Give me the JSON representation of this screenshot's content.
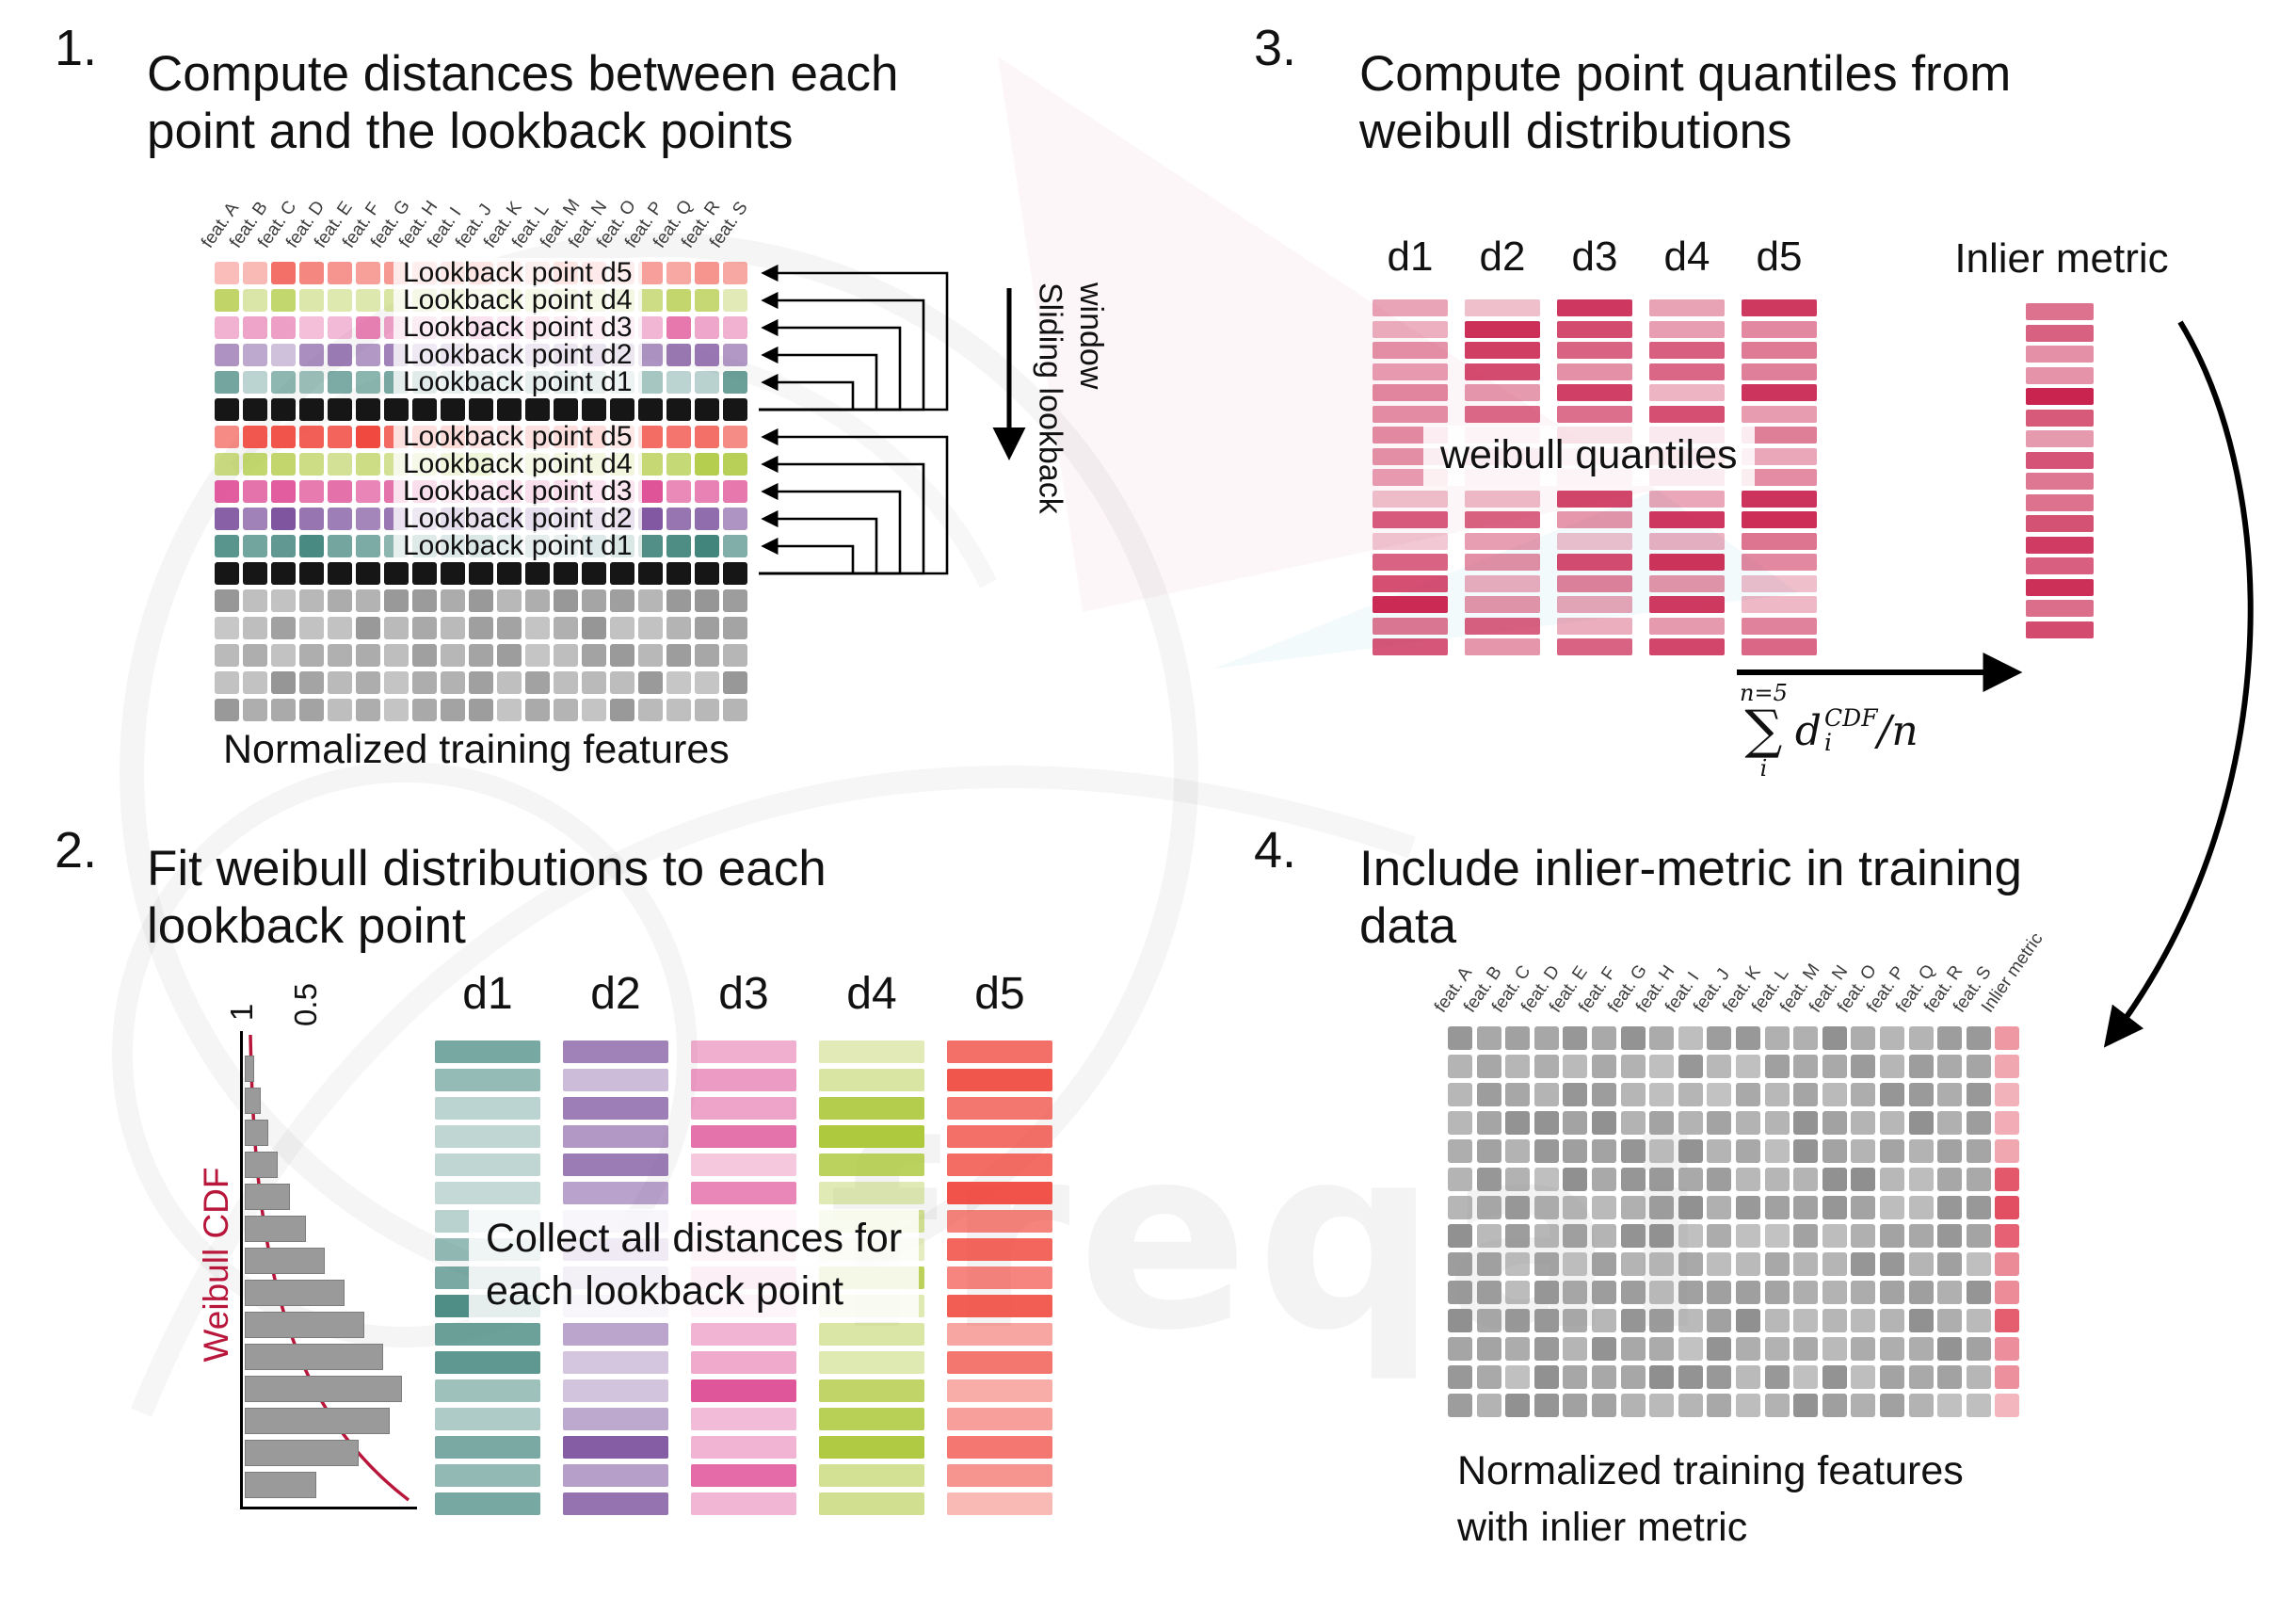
{
  "palette": {
    "d1": "#3E837A",
    "d2": "#7D539E",
    "d3": "#DE4D95",
    "d4": "#AFC93F",
    "d5": "#F0493F",
    "black": "#161616",
    "gray": "#8F8F8F",
    "quantile": "#C9234F",
    "inlier": "#E04358",
    "cdf_curve": "#B8173B",
    "arrow": "#000000"
  },
  "watermark": {
    "text": "freqai"
  },
  "step1": {
    "number": "1.",
    "title_lines": [
      "Compute distances between each",
      "point and the lookback points"
    ],
    "feature_labels": [
      "feat. A",
      "feat. B",
      "feat. C",
      "feat. D",
      "feat. E",
      "feat. F",
      "feat. G",
      "feat. H",
      "feat. I",
      "feat. J",
      "feat. K",
      "feat. L",
      "feat. M",
      "feat. N",
      "feat. O",
      "feat. P",
      "feat. Q",
      "feat. R",
      "feat. S"
    ],
    "rows": [
      {
        "label": "Lookback point d5",
        "color_key": "d5",
        "alpha": [
          0.35,
          0.8
        ]
      },
      {
        "label": "Lookback point d4",
        "color_key": "d4",
        "alpha": [
          0.35,
          0.8
        ]
      },
      {
        "label": "Lookback point d3",
        "color_key": "d3",
        "alpha": [
          0.35,
          0.8
        ]
      },
      {
        "label": "Lookback point d2",
        "color_key": "d2",
        "alpha": [
          0.35,
          0.8
        ]
      },
      {
        "label": "Lookback point d1",
        "color_key": "d1",
        "alpha": [
          0.35,
          0.8
        ]
      },
      {
        "color_key": "black",
        "alpha": [
          1,
          1
        ]
      },
      {
        "label": "Lookback point d5",
        "color_key": "d5",
        "alpha": [
          0.55,
          1
        ]
      },
      {
        "label": "Lookback point d4",
        "color_key": "d4",
        "alpha": [
          0.55,
          1
        ]
      },
      {
        "label": "Lookback point d3",
        "color_key": "d3",
        "alpha": [
          0.55,
          1
        ]
      },
      {
        "label": "Lookback point d2",
        "color_key": "d2",
        "alpha": [
          0.55,
          1
        ]
      },
      {
        "label": "Lookback point d1",
        "color_key": "d1",
        "alpha": [
          0.55,
          1
        ]
      },
      {
        "color_key": "black",
        "alpha": [
          1,
          1
        ]
      },
      {
        "color_key": "gray",
        "alpha": [
          0.5,
          0.95
        ]
      },
      {
        "color_key": "gray",
        "alpha": [
          0.5,
          0.95
        ]
      },
      {
        "color_key": "gray",
        "alpha": [
          0.5,
          0.95
        ]
      },
      {
        "color_key": "gray",
        "alpha": [
          0.5,
          0.95
        ]
      },
      {
        "color_key": "gray",
        "alpha": [
          0.5,
          0.95
        ]
      }
    ],
    "sliding_lines": [
      "Sliding lookback",
      "window"
    ],
    "caption": "Normalized training features"
  },
  "step2": {
    "number": "2.",
    "title_lines": [
      "Fit weibull distributions to each",
      "lookback point"
    ],
    "plot": {
      "cdf_label": "Weibull CDF",
      "tick_labels": [
        "1",
        "0.5"
      ],
      "bar_values": [
        0.05,
        0.09,
        0.14,
        0.2,
        0.28,
        0.38,
        0.5,
        0.63,
        0.76,
        0.88,
        1.0,
        0.92,
        0.72,
        0.45
      ]
    },
    "columns": [
      {
        "label": "d1",
        "color_key": "d1"
      },
      {
        "label": "d2",
        "color_key": "d2"
      },
      {
        "label": "d3",
        "color_key": "d3"
      },
      {
        "label": "d4",
        "color_key": "d4"
      },
      {
        "label": "d5",
        "color_key": "d5"
      }
    ],
    "overlay_lines": [
      "Collect all distances for",
      "each lookback point"
    ]
  },
  "step3": {
    "number": "3.",
    "title_lines": [
      "Compute point quantiles from",
      "weibull distributions"
    ],
    "columns": [
      "d1",
      "d2",
      "d3",
      "d4",
      "d5"
    ],
    "inlier_label": "Inlier metric",
    "overlay": "weibull quantiles",
    "formula": {
      "sum_sup": "n=5",
      "sum_sym": "∑",
      "sum_sub": "i",
      "var": "d",
      "var_sup": "CDF",
      "var_sub": "i",
      "tail": "/n"
    }
  },
  "step4": {
    "number": "4.",
    "title_lines": [
      "Include inlier-metric in training",
      "data"
    ],
    "feature_labels": [
      "feat. A",
      "feat. B",
      "feat. C",
      "feat. D",
      "feat. E",
      "feat. F",
      "feat. G",
      "feat. H",
      "feat. I",
      "feat. J",
      "feat. K",
      "feat. L",
      "feat. M",
      "feat. N",
      "feat. O",
      "feat. P",
      "feat. Q",
      "feat. R",
      "feat. S"
    ],
    "inlier_col_label": "Inlier metric",
    "caption_lines": [
      "Normalized training features",
      "with inlier metric"
    ]
  }
}
